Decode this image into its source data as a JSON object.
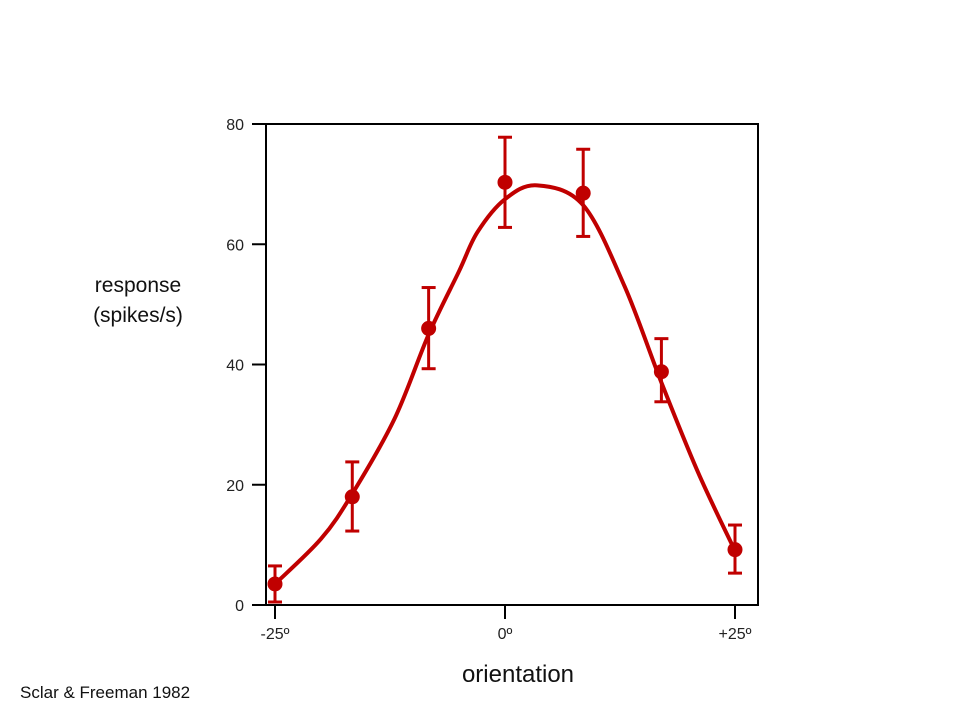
{
  "chart_data": {
    "type": "scatter",
    "title": "",
    "xlabel": "orientation",
    "ylabel_lines": [
      "response",
      "(spikes/s)"
    ],
    "xlim": [
      -27.5,
      27.5
    ],
    "ylim": [
      0,
      80
    ],
    "x_ticks": [
      {
        "value": -25,
        "label": "-25º"
      },
      {
        "value": 0,
        "label": "0º"
      },
      {
        "value": 25,
        "label": "+25º"
      }
    ],
    "y_ticks": [
      {
        "value": 0,
        "label": "0"
      },
      {
        "value": 20,
        "label": "20"
      },
      {
        "value": 40,
        "label": "40"
      },
      {
        "value": 60,
        "label": "60"
      },
      {
        "value": 80,
        "label": "80"
      }
    ],
    "series": [
      {
        "points": [
          {
            "x": -25,
            "y": 3.5,
            "err_low": 0.5,
            "err_high": 6.5
          },
          {
            "x": -16.6,
            "y": 18,
            "err_low": 12.3,
            "err_high": 23.8
          },
          {
            "x": -8.3,
            "y": 46,
            "err_low": 39.3,
            "err_high": 52.8
          },
          {
            "x": 0,
            "y": 70.3,
            "err_low": 62.8,
            "err_high": 77.8
          },
          {
            "x": 8.5,
            "y": 68.5,
            "err_low": 61.3,
            "err_high": 75.8
          },
          {
            "x": 17,
            "y": 38.8,
            "err_low": 33.8,
            "err_high": 44.3
          },
          {
            "x": 25,
            "y": 9.2,
            "err_low": 5.3,
            "err_high": 13.3
          }
        ]
      }
    ],
    "fit_curve": {
      "x": [
        -25,
        -20,
        -16.6,
        -12,
        -8.3,
        -5,
        -3,
        0,
        3.5,
        8.5,
        13,
        17,
        21,
        25
      ],
      "y": [
        3.5,
        11,
        18.5,
        31,
        45,
        55.5,
        62,
        67.5,
        69.8,
        66.5,
        53,
        37,
        22,
        9
      ]
    },
    "colors": {
      "data": "#c00000",
      "axis": "#000000"
    }
  },
  "citation": "Sclar & Freeman 1982"
}
